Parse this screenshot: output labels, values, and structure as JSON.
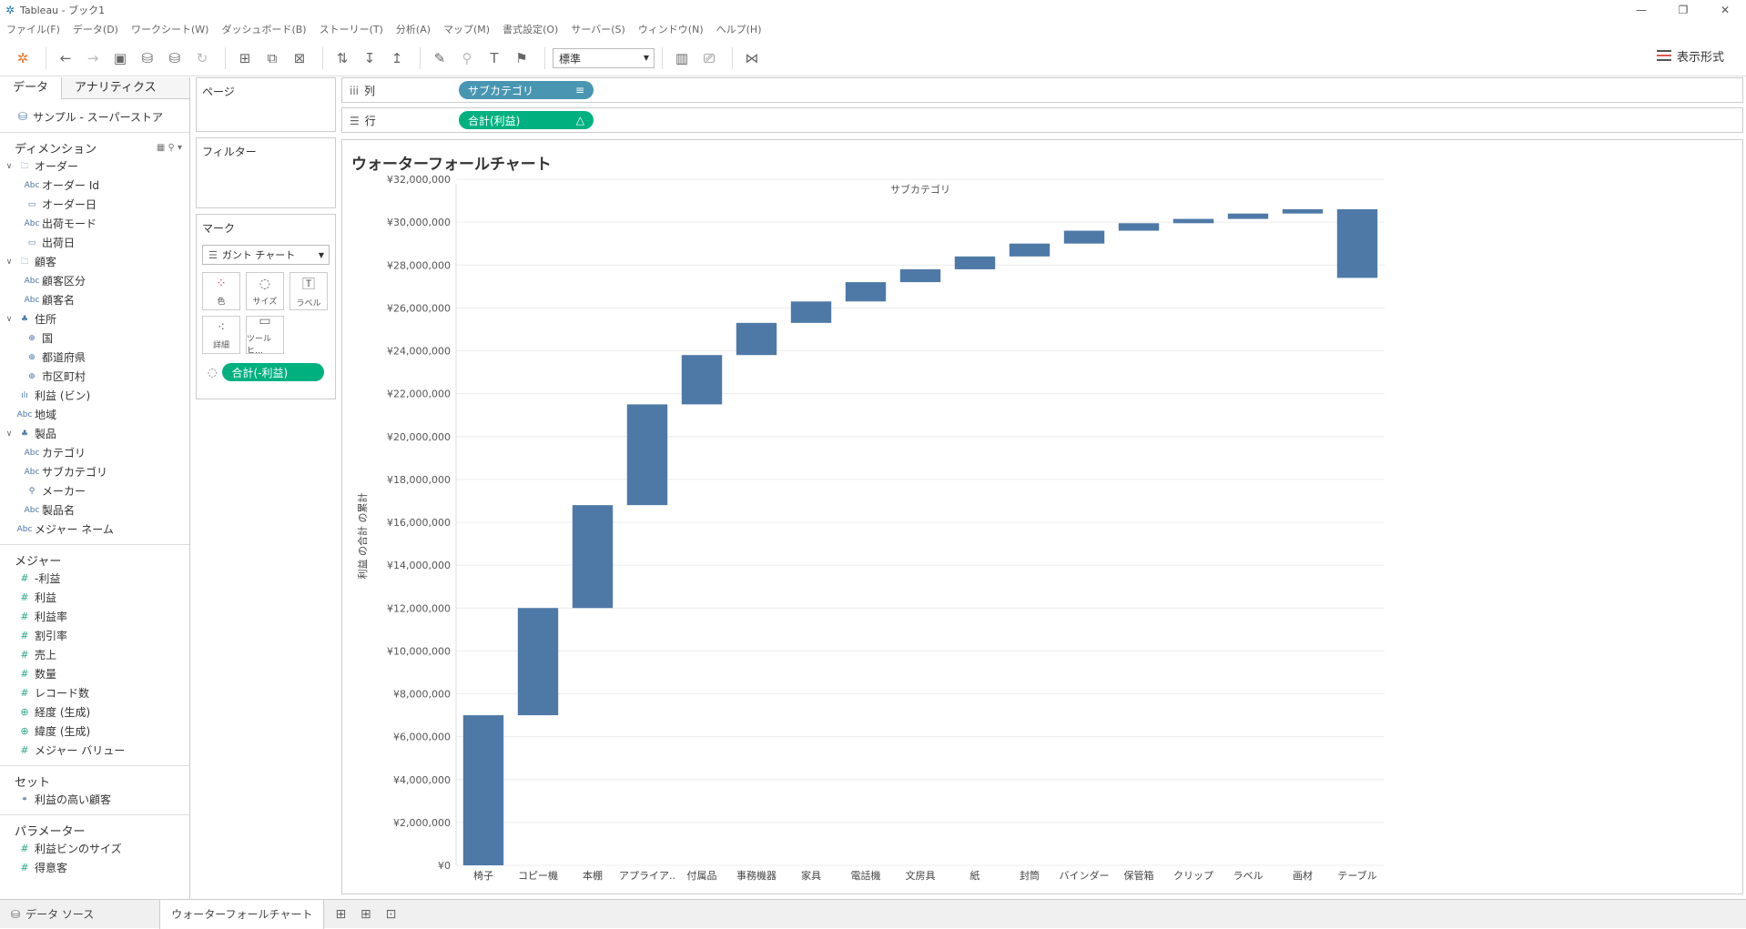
{
  "window": {
    "title": "Tableau - ブック1"
  },
  "menu": [
    "ファイル(F)",
    "データ(D)",
    "ワークシート(W)",
    "ダッシュボード(B)",
    "ストーリー(T)",
    "分析(A)",
    "マップ(M)",
    "書式設定(O)",
    "サーバー(S)",
    "ウィンドウ(N)",
    "ヘルプ(H)"
  ],
  "toolbar": {
    "fit_value": "標準",
    "show_me_label": "表示形式"
  },
  "left": {
    "tab_data": "データ",
    "tab_analytics": "アナリティクス",
    "datasource": "サンプル - スーパーストア",
    "dimensions_label": "ディメンション",
    "dimensions": [
      {
        "type": "folder",
        "label": "オーダー",
        "indent": 0
      },
      {
        "type": "Abc",
        "label": "オーダー Id",
        "indent": 1
      },
      {
        "type": "date",
        "label": "オーダー日",
        "indent": 1
      },
      {
        "type": "Abc",
        "label": "出荷モード",
        "indent": 1
      },
      {
        "type": "date",
        "label": "出荷日",
        "indent": 1
      },
      {
        "type": "folder",
        "label": "顧客",
        "indent": 0
      },
      {
        "type": "Abc",
        "label": "顧客区分",
        "indent": 1
      },
      {
        "type": "Abc",
        "label": "顧客名",
        "indent": 1
      },
      {
        "type": "hier",
        "label": "住所",
        "indent": 0
      },
      {
        "type": "geo",
        "label": "国",
        "indent": 1
      },
      {
        "type": "geo",
        "label": "都道府県",
        "indent": 1
      },
      {
        "type": "geo",
        "label": "市区町村",
        "indent": 1
      },
      {
        "type": "bin",
        "label": "利益 (ビン)",
        "indent": 0
      },
      {
        "type": "Abc",
        "label": "地域",
        "indent": 0
      },
      {
        "type": "hier",
        "label": "製品",
        "indent": 0
      },
      {
        "type": "Abc",
        "label": "カテゴリ",
        "indent": 1
      },
      {
        "type": "Abc",
        "label": "サブカテゴリ",
        "indent": 1
      },
      {
        "type": "clip",
        "label": "メーカー",
        "indent": 1
      },
      {
        "type": "Abc",
        "label": "製品名",
        "indent": 1
      },
      {
        "type": "Abc",
        "label": "メジャー ネーム",
        "indent": 0
      }
    ],
    "measures_label": "メジャー",
    "measures": [
      "-利益",
      "利益",
      "利益率",
      "割引率",
      "売上",
      "数量",
      "レコード数",
      "経度 (生成)",
      "緯度 (生成)",
      "メジャー バリュー"
    ],
    "sets_label": "セット",
    "sets": [
      "利益の高い顧客"
    ],
    "params_label": "パラメーター",
    "params": [
      "利益ビンのサイズ",
      "得意客"
    ]
  },
  "cards": {
    "pages": "ページ",
    "filters": "フィルター",
    "marks": "マーク",
    "mark_type": "ガント チャート",
    "btn_color": "色",
    "btn_size": "サイズ",
    "btn_label": "ラベル",
    "btn_detail": "詳細",
    "btn_tooltip": "ツールヒ…",
    "size_pill": "合計(-利益)"
  },
  "shelves": {
    "columns_label": "列",
    "columns_pill": "サブカテゴリ",
    "rows_label": "行",
    "rows_pill": "合計(利益)"
  },
  "sheet": {
    "title": "ウォーターフォールチャート"
  },
  "chart_data": {
    "type": "bar",
    "subtype": "waterfall (gantt)",
    "title": "ウォーターフォールチャート",
    "header": "サブカテゴリ",
    "ylabel": "利益 の合計 の累計",
    "categories": [
      "椅子",
      "コピー機",
      "本棚",
      "アプライア..",
      "付属品",
      "事務機器",
      "家具",
      "電話機",
      "文房具",
      "紙",
      "封筒",
      "バインダー",
      "保管箱",
      "クリップ",
      "ラベル",
      "画材",
      "テーブル"
    ],
    "start": [
      0,
      7000000,
      12000000,
      16800000,
      21500000,
      23800000,
      25300000,
      26300000,
      27200000,
      27800000,
      28400000,
      29000000,
      29600000,
      29950000,
      30150000,
      30400000,
      27400000
    ],
    "end": [
      7000000,
      12000000,
      16800000,
      21500000,
      23800000,
      25300000,
      26300000,
      27200000,
      27800000,
      28400000,
      29000000,
      29600000,
      29950000,
      30150000,
      30400000,
      30600000,
      30600000
    ],
    "ylim": [
      0,
      32000000
    ],
    "yticks": [
      "¥0",
      "¥2,000,000",
      "¥4,000,000",
      "¥6,000,000",
      "¥8,000,000",
      "¥10,000,000",
      "¥12,000,000",
      "¥14,000,000",
      "¥16,000,000",
      "¥18,000,000",
      "¥20,000,000",
      "¥22,000,000",
      "¥24,000,000",
      "¥26,000,000",
      "¥28,000,000",
      "¥30,000,000",
      "¥32,000,000"
    ],
    "color": "#4e79a7",
    "grid": true
  },
  "bottom_tabs": {
    "datasource": "データ ソース",
    "sheet": "ウォーターフォールチャート"
  }
}
